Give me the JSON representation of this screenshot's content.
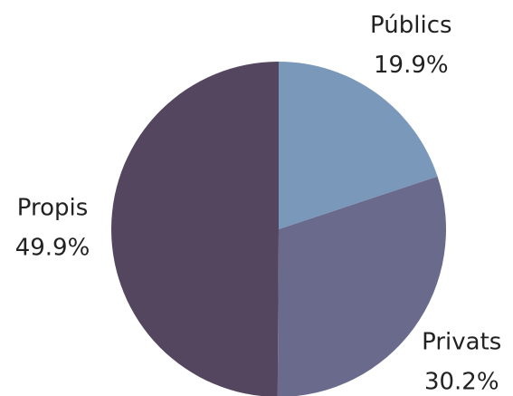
{
  "chart_data": {
    "type": "pie",
    "categories": [
      "Públics",
      "Privats",
      "Propis"
    ],
    "values": [
      19.9,
      30.2,
      49.9
    ],
    "value_labels": [
      "19.9%",
      "30.2%",
      "49.9%"
    ],
    "colors": [
      "#7a98b9",
      "#6a6b8c",
      "#54465e"
    ]
  }
}
